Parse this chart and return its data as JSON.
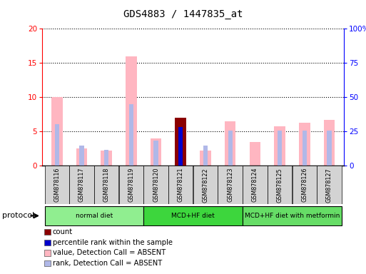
{
  "title": "GDS4883 / 1447835_at",
  "samples": [
    "GSM878116",
    "GSM878117",
    "GSM878118",
    "GSM878119",
    "GSM878120",
    "GSM878121",
    "GSM878122",
    "GSM878123",
    "GSM878124",
    "GSM878125",
    "GSM878126",
    "GSM878127"
  ],
  "value_absent": [
    10.0,
    2.5,
    2.2,
    16.0,
    4.0,
    null,
    2.2,
    6.5,
    3.5,
    5.8,
    6.3,
    6.7
  ],
  "rank_absent": [
    6.1,
    2.9,
    2.3,
    9.0,
    3.7,
    null,
    2.9,
    5.1,
    null,
    5.1,
    5.1,
    5.1
  ],
  "count_present": [
    null,
    null,
    null,
    null,
    null,
    7.0,
    null,
    null,
    null,
    null,
    null,
    null
  ],
  "rank_present": [
    null,
    null,
    null,
    null,
    null,
    5.7,
    null,
    null,
    null,
    null,
    null,
    null
  ],
  "protocols": [
    {
      "label": "normal diet",
      "start": 0,
      "end": 4,
      "color": "#90ee90"
    },
    {
      "label": "MCD+HF diet",
      "start": 4,
      "end": 8,
      "color": "#3dd63d"
    },
    {
      "label": "MCD+HF diet with metformin",
      "start": 8,
      "end": 12,
      "color": "#66dd66"
    }
  ],
  "ylim_left": [
    0,
    20
  ],
  "ylim_right": [
    0,
    100
  ],
  "yticks_left": [
    0,
    5,
    10,
    15,
    20
  ],
  "yticks_right": [
    0,
    25,
    50,
    75,
    100
  ],
  "yticklabels_right": [
    "0",
    "25",
    "50",
    "75",
    "100%"
  ],
  "color_value_absent": "#ffb6c1",
  "color_rank_absent": "#b0b8e8",
  "color_count_present": "#8b0000",
  "color_rank_present": "#0000cc",
  "sample_area_color": "#d3d3d3",
  "legend_items": [
    {
      "label": "count",
      "color": "#8b0000"
    },
    {
      "label": "percentile rank within the sample",
      "color": "#0000cc"
    },
    {
      "label": "value, Detection Call = ABSENT",
      "color": "#ffb6c1"
    },
    {
      "label": "rank, Detection Call = ABSENT",
      "color": "#b0b8e8"
    }
  ]
}
